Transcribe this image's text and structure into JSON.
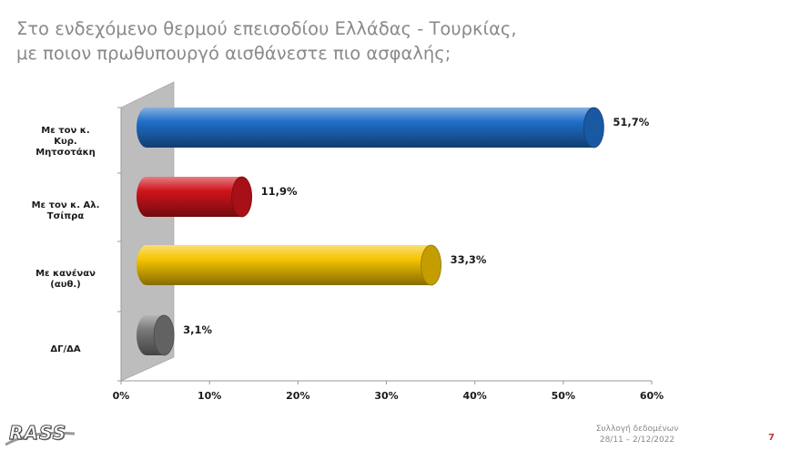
{
  "title": {
    "line1": "Στο ενδεχόμενο θερμού επεισοδίου Ελλάδας - Τουρκίας,",
    "line2": "με ποιον πρωθυπουργό αισθάνεστε πιο ασφαλής;"
  },
  "chart_data": {
    "type": "bar",
    "orientation": "horizontal",
    "categories": [
      [
        "Με τον κ.",
        "Κυρ.",
        "Μητσοτάκη"
      ],
      [
        "Με τον κ. Αλ.",
        "Τσίπρα"
      ],
      [
        "Με κανέναν",
        "(αυθ.)"
      ],
      [
        "ΔΓ/ΔΑ"
      ]
    ],
    "values": [
      51.7,
      11.9,
      33.3,
      3.1
    ],
    "value_labels": [
      "51,7%",
      "11,9%",
      "33,3%",
      "3,1%"
    ],
    "colors": [
      "#1f6fc9",
      "#d0141c",
      "#f5c400",
      "#7a7a7a"
    ],
    "xlim": [
      0,
      60
    ],
    "xticks": [
      "0%",
      "10%",
      "20%",
      "30%",
      "40%",
      "50%",
      "60%"
    ],
    "grid": false,
    "legend": "none"
  },
  "footer": {
    "logo": "RASS",
    "line1": "Συλλογή δεδομένων",
    "line2": "28/11 – 2/12/2022",
    "page_number": "7"
  }
}
